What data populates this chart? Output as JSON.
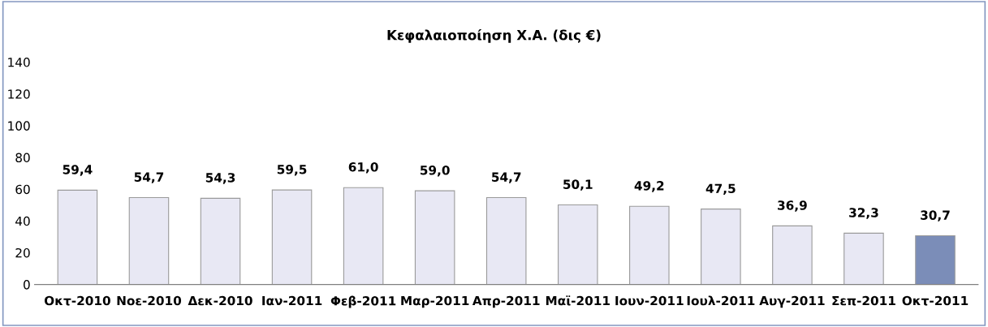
{
  "chart_data": {
    "type": "bar",
    "title": "Κεφαλαιοποίηση Χ.Α. (δις €)",
    "categories": [
      "Οκτ-2010",
      "Νοε-2010",
      "Δεκ-2010",
      "Ιαν-2011",
      "Φεβ-2011",
      "Μαρ-2011",
      "Απρ-2011",
      "Μαϊ-2011",
      "Ιουν-2011",
      "Ιουλ-2011",
      "Αυγ-2011",
      "Σεπ-2011",
      "Οκτ-2011"
    ],
    "values": [
      59.4,
      54.7,
      54.3,
      59.5,
      61.0,
      59.0,
      54.7,
      50.1,
      49.2,
      47.5,
      36.9,
      32.3,
      30.7
    ],
    "value_labels": [
      "59,4",
      "54,7",
      "54,3",
      "59,5",
      "61,0",
      "59,0",
      "54,7",
      "50,1",
      "49,2",
      "47,5",
      "36,9",
      "32,3",
      "30,7"
    ],
    "colors": [
      "#e8e8f4",
      "#e8e8f4",
      "#e8e8f4",
      "#e8e8f4",
      "#e8e8f4",
      "#e8e8f4",
      "#e8e8f4",
      "#e8e8f4",
      "#e8e8f4",
      "#e8e8f4",
      "#e8e8f4",
      "#e8e8f4",
      "#7b8db8"
    ],
    "ylim": [
      0,
      140
    ],
    "yticks": [
      0,
      20,
      40,
      60,
      80,
      100,
      120,
      140
    ],
    "grid": false,
    "legend": false
  }
}
